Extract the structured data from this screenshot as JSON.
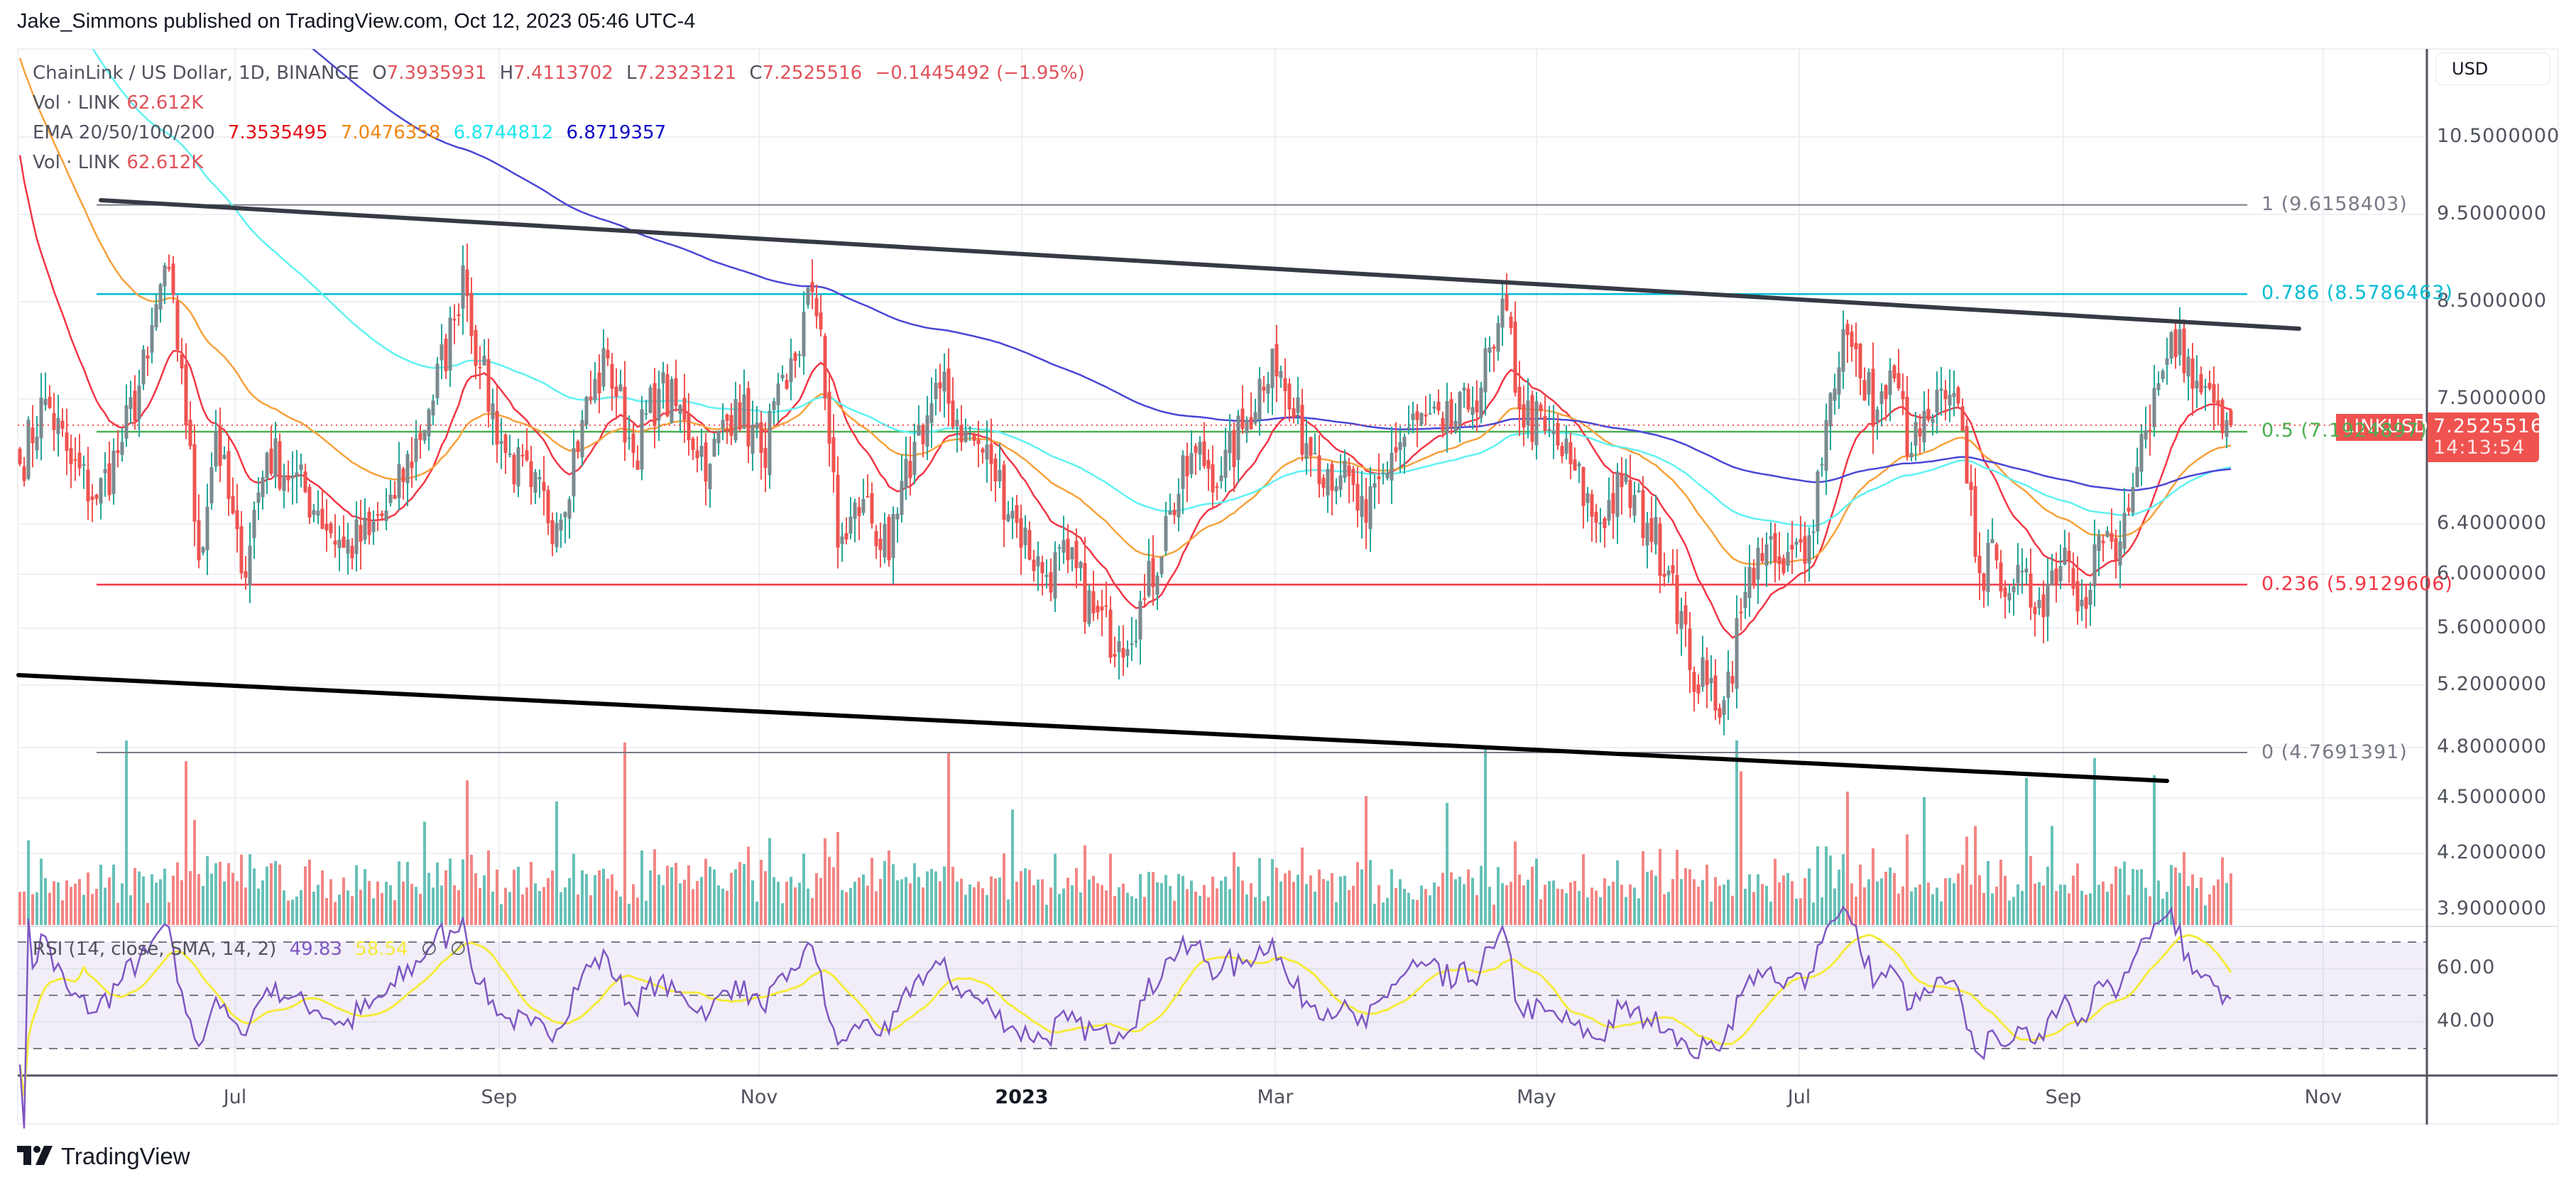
{
  "publisher_line": "Jake_Simmons published on TradingView.com, Oct 12, 2023 05:46 UTC-4",
  "legend": {
    "symbol": "ChainLink / US Dollar, 1D, BINANCE",
    "o_label": "O",
    "o_value": "7.3935931",
    "h_label": "H",
    "h_value": "7.4113702",
    "l_label": "L",
    "l_value": "7.2323121",
    "c_label": "C",
    "c_value": "7.2525516",
    "change": "−0.1445492 (−1.95%)",
    "vol_label": "Vol · LINK",
    "vol_value": "62.612K",
    "ema_label": "EMA 20/50/100/200",
    "ema20": "7.3535495",
    "ema50": "7.0476358",
    "ema100": "6.8744812",
    "ema200": "6.8719357",
    "vol2_label": "Vol · LINK",
    "vol2_value": "62.612K",
    "rsi_label": "RSI (14, close, SMA, 14, 2)",
    "rsi_value": "49.83",
    "rsi_sma_value": "58.54",
    "rsi_na1": "∅",
    "rsi_na2": "∅"
  },
  "price_axis": {
    "currency": "USD",
    "ticks": [
      "10.5000000",
      "9.5000000",
      "8.5000000",
      "7.5000000",
      "6.4000000",
      "6.0000000",
      "5.6000000",
      "5.2000000",
      "4.8000000",
      "4.5000000",
      "4.2000000",
      "3.9000000"
    ],
    "last_price": "7.2525516",
    "countdown": "14:13:54",
    "symbol_tag": "LINKUSD"
  },
  "rsi_axis": {
    "ticks": [
      "60.00",
      "40.00"
    ]
  },
  "time_axis": {
    "ticks": [
      "Jul",
      "Sep",
      "Nov",
      "2023",
      "Mar",
      "May",
      "Jul",
      "Sep",
      "Nov"
    ]
  },
  "fib_levels": [
    {
      "label": "1 (9.6158403)",
      "color": "#787b86"
    },
    {
      "label": "0.786 (8.5786463)",
      "color": "#00bcd4"
    },
    {
      "label": "0.5 (7.1924897)",
      "color": "#4caf50"
    },
    {
      "label": "0.236 (5.9129606)",
      "color": "#f23645"
    },
    {
      "label": "0 (4.7691391)",
      "color": "#787b86"
    }
  ],
  "colors": {
    "up": "#26a69a",
    "up_body": "#7a8a8e",
    "down": "#ef5350",
    "ema20": "#f23645",
    "ema50": "#f7a13b",
    "ema100": "#5ff2f2",
    "ema200": "#4a46d6",
    "rsi": "#7e57c2",
    "rsi_sma": "#f5eb3c",
    "trendline": "#1e1f26"
  },
  "footer": {
    "brand": "TradingView"
  },
  "chart_data": {
    "type": "candlestick",
    "title": "ChainLink / US Dollar, 1D, BINANCE",
    "scale": "log",
    "ylim": [
      3.8,
      10.9
    ],
    "x_range": [
      "2022-05-11",
      "2023-10-12"
    ],
    "xlabel": "",
    "ylabel": "USD",
    "close_keypoints": [
      {
        "d": 0,
        "p": 6.9
      },
      {
        "d": 6,
        "p": 7.5
      },
      {
        "d": 12,
        "p": 6.9
      },
      {
        "d": 18,
        "p": 6.6
      },
      {
        "d": 24,
        "p": 7.1
      },
      {
        "d": 30,
        "p": 7.9
      },
      {
        "d": 34,
        "p": 8.9
      },
      {
        "d": 38,
        "p": 7.8
      },
      {
        "d": 42,
        "p": 6.1
      },
      {
        "d": 46,
        "p": 7.2
      },
      {
        "d": 52,
        "p": 6.0
      },
      {
        "d": 58,
        "p": 7.0
      },
      {
        "d": 64,
        "p": 6.8
      },
      {
        "d": 70,
        "p": 6.5
      },
      {
        "d": 76,
        "p": 6.2
      },
      {
        "d": 82,
        "p": 6.3
      },
      {
        "d": 88,
        "p": 6.6
      },
      {
        "d": 96,
        "p": 7.4
      },
      {
        "d": 102,
        "p": 8.3
      },
      {
        "d": 104,
        "p": 8.9
      },
      {
        "d": 108,
        "p": 7.8
      },
      {
        "d": 114,
        "p": 7.0
      },
      {
        "d": 120,
        "p": 6.7
      },
      {
        "d": 126,
        "p": 6.4
      },
      {
        "d": 132,
        "p": 7.3
      },
      {
        "d": 138,
        "p": 7.9
      },
      {
        "d": 144,
        "p": 7.0
      },
      {
        "d": 150,
        "p": 7.6
      },
      {
        "d": 156,
        "p": 7.3
      },
      {
        "d": 162,
        "p": 6.9
      },
      {
        "d": 168,
        "p": 7.5
      },
      {
        "d": 174,
        "p": 7.0
      },
      {
        "d": 180,
        "p": 7.6
      },
      {
        "d": 186,
        "p": 8.6
      },
      {
        "d": 188,
        "p": 8.2
      },
      {
        "d": 192,
        "p": 6.2
      },
      {
        "d": 198,
        "p": 6.6
      },
      {
        "d": 204,
        "p": 6.1
      },
      {
        "d": 210,
        "p": 7.1
      },
      {
        "d": 216,
        "p": 7.6
      },
      {
        "d": 222,
        "p": 7.2
      },
      {
        "d": 228,
        "p": 6.9
      },
      {
        "d": 234,
        "p": 6.4
      },
      {
        "d": 240,
        "p": 6.0
      },
      {
        "d": 246,
        "p": 6.1
      },
      {
        "d": 252,
        "p": 5.7
      },
      {
        "d": 258,
        "p": 5.5
      },
      {
        "d": 264,
        "p": 5.8
      },
      {
        "d": 270,
        "p": 6.5
      },
      {
        "d": 276,
        "p": 7.0
      },
      {
        "d": 282,
        "p": 6.8
      },
      {
        "d": 288,
        "p": 7.3
      },
      {
        "d": 294,
        "p": 8.0
      },
      {
        "d": 298,
        "p": 7.4
      },
      {
        "d": 304,
        "p": 7.0
      },
      {
        "d": 310,
        "p": 6.8
      },
      {
        "d": 316,
        "p": 6.4
      },
      {
        "d": 322,
        "p": 7.0
      },
      {
        "d": 328,
        "p": 7.3
      },
      {
        "d": 334,
        "p": 7.2
      },
      {
        "d": 340,
        "p": 7.4
      },
      {
        "d": 346,
        "p": 8.0
      },
      {
        "d": 349,
        "p": 8.4
      },
      {
        "d": 352,
        "p": 7.4
      },
      {
        "d": 358,
        "p": 7.2
      },
      {
        "d": 364,
        "p": 6.9
      },
      {
        "d": 370,
        "p": 6.4
      },
      {
        "d": 376,
        "p": 6.7
      },
      {
        "d": 382,
        "p": 6.4
      },
      {
        "d": 388,
        "p": 6.0
      },
      {
        "d": 392,
        "p": 5.3
      },
      {
        "d": 396,
        "p": 5.2
      },
      {
        "d": 400,
        "p": 5.1
      },
      {
        "d": 404,
        "p": 5.7
      },
      {
        "d": 408,
        "p": 6.2
      },
      {
        "d": 414,
        "p": 6.0
      },
      {
        "d": 420,
        "p": 6.3
      },
      {
        "d": 424,
        "p": 7.3
      },
      {
        "d": 428,
        "p": 8.2
      },
      {
        "d": 432,
        "p": 7.7
      },
      {
        "d": 436,
        "p": 7.4
      },
      {
        "d": 440,
        "p": 7.7
      },
      {
        "d": 444,
        "p": 7.0
      },
      {
        "d": 448,
        "p": 7.3
      },
      {
        "d": 452,
        "p": 7.5
      },
      {
        "d": 456,
        "p": 7.2
      },
      {
        "d": 460,
        "p": 6.0
      },
      {
        "d": 464,
        "p": 6.1
      },
      {
        "d": 468,
        "p": 5.9
      },
      {
        "d": 474,
        "p": 5.8
      },
      {
        "d": 480,
        "p": 6.2
      },
      {
        "d": 484,
        "p": 5.8
      },
      {
        "d": 488,
        "p": 6.3
      },
      {
        "d": 492,
        "p": 6.1
      },
      {
        "d": 496,
        "p": 6.7
      },
      {
        "d": 500,
        "p": 7.2
      },
      {
        "d": 504,
        "p": 7.9
      },
      {
        "d": 507,
        "p": 8.2
      },
      {
        "d": 510,
        "p": 7.6
      },
      {
        "d": 514,
        "p": 7.6
      },
      {
        "d": 518,
        "p": 7.3
      },
      {
        "d": 519,
        "p": 7.2525516
      }
    ],
    "fib_retracement": {
      "1": 9.6158403,
      "0.786": 8.5786463,
      "0.5": 7.1924897,
      "0.236": 5.9129606,
      "0": 4.7691391
    },
    "trendlines": [
      {
        "name": "upper",
        "from": {
          "x": 142,
          "y": 282
        },
        "to": {
          "x": 3238,
          "y": 463
        }
      },
      {
        "name": "lower",
        "from": {
          "x": 26,
          "y": 951
        },
        "to": {
          "x": 3052,
          "y": 1100
        }
      }
    ],
    "indicators": {
      "ema": {
        "periods": [
          20,
          50,
          100,
          200
        ],
        "last": [
          7.3535495,
          7.0476358,
          6.8744812,
          6.8719357
        ]
      },
      "rsi": {
        "period": 14,
        "last": 49.83,
        "sma_last": 58.54,
        "bands": [
          70,
          50,
          30
        ],
        "ticks": [
          60,
          40
        ]
      },
      "volume": {
        "last": "62.612K"
      }
    },
    "legend_position": "top-left",
    "grid": true
  }
}
